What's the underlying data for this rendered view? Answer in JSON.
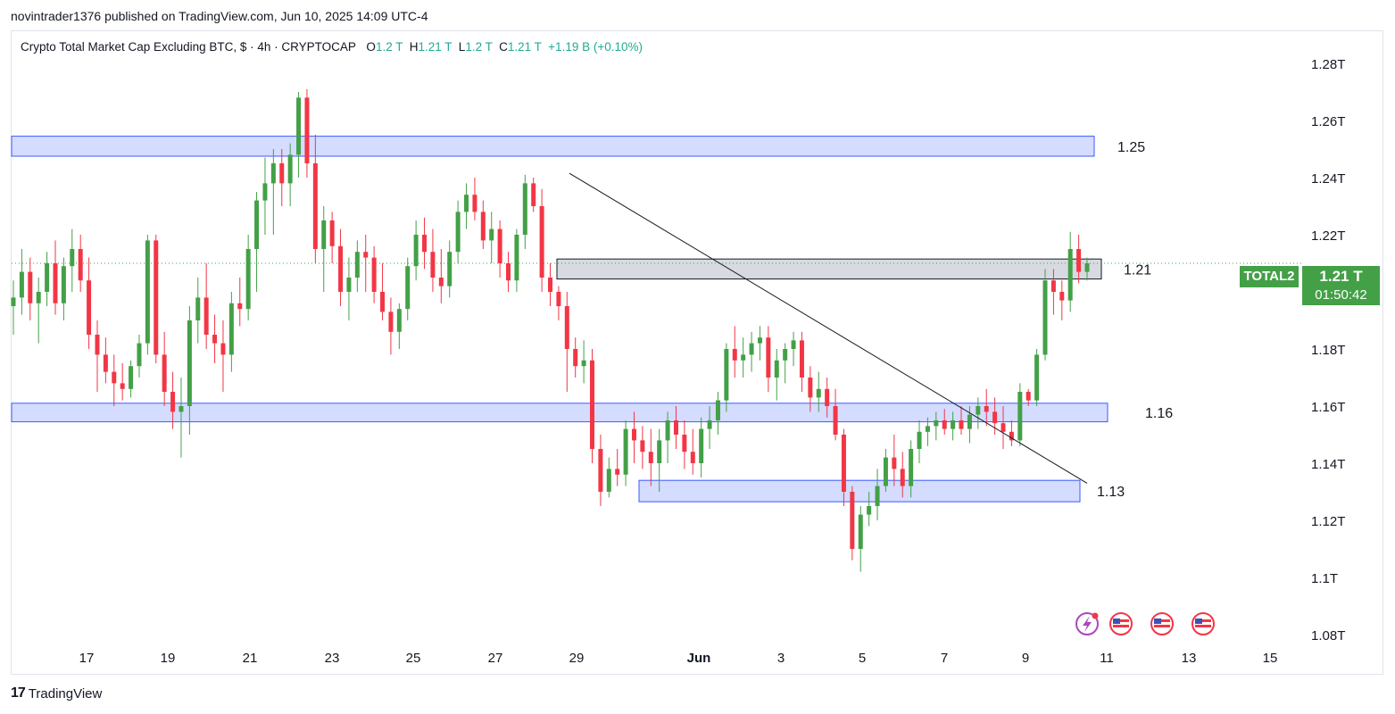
{
  "header": {
    "publish_line": "novintrader1376 published on TradingView.com, Jun 10, 2025 14:09 UTC-4"
  },
  "legend": {
    "symbol": "Crypto Total Market Cap Excluding BTC, $ · 4h · CRYPTOCAP",
    "o_label": "O",
    "o_value": "1.2 T",
    "h_label": "H",
    "h_value": "1.21 T",
    "l_label": "L",
    "l_value": "1.2 T",
    "c_label": "C",
    "c_value": "1.21 T",
    "change": "+1.19 B (+0.10%)"
  },
  "price_badge": {
    "ticker": "TOTAL2",
    "price": "1.21 T",
    "countdown": "01:50:42"
  },
  "footer": {
    "logo": "17",
    "brand": "TradingView"
  },
  "colors": {
    "up": "#22ab94",
    "up_body": "#43a047",
    "down": "#f23645",
    "zone_fill": "#d4dcff",
    "zone_border": "#3d5afe",
    "gray_zone": "#d1d4dc",
    "badge": "#43a047"
  },
  "chart_data": {
    "type": "candlestick",
    "x_ticks": [
      "17",
      "19",
      "21",
      "23",
      "25",
      "27",
      "29",
      "Jun",
      "3",
      "5",
      "7",
      "9",
      "11",
      "13",
      "15"
    ],
    "y_ticks": [
      "1.28T",
      "1.26T",
      "1.24T",
      "1.22T",
      "1.18T",
      "1.16T",
      "1.14T",
      "1.12T",
      "1.1T",
      "1.08T"
    ],
    "y_tick_values": [
      1.28,
      1.26,
      1.24,
      1.22,
      1.18,
      1.16,
      1.14,
      1.12,
      1.1,
      1.08
    ],
    "ylim": [
      1.08,
      1.28
    ],
    "zones": [
      {
        "label": "1.25",
        "low": 1.2475,
        "high": 1.2545,
        "style": "blue"
      },
      {
        "label": "1.21",
        "low": 1.2045,
        "high": 1.2115,
        "style": "gray"
      },
      {
        "label": "1.16",
        "low": 1.1545,
        "high": 1.161,
        "style": "blue"
      },
      {
        "label": "1.13",
        "low": 1.1265,
        "high": 1.134,
        "style": "blue"
      }
    ],
    "trendline": {
      "from": [
        "May 28",
        1.2415
      ],
      "to": [
        "Jun 10",
        1.133
      ]
    },
    "last_price": 1.21,
    "candles": [
      [
        1.195,
        1.204,
        1.185,
        1.198
      ],
      [
        1.198,
        1.215,
        1.192,
        1.207
      ],
      [
        1.207,
        1.212,
        1.19,
        1.196
      ],
      [
        1.196,
        1.205,
        1.182,
        1.2
      ],
      [
        1.2,
        1.214,
        1.195,
        1.21
      ],
      [
        1.21,
        1.218,
        1.192,
        1.196
      ],
      [
        1.196,
        1.212,
        1.19,
        1.209
      ],
      [
        1.209,
        1.222,
        1.2,
        1.215
      ],
      [
        1.215,
        1.22,
        1.2,
        1.204
      ],
      [
        1.204,
        1.212,
        1.18,
        1.185
      ],
      [
        1.185,
        1.19,
        1.165,
        1.178
      ],
      [
        1.178,
        1.184,
        1.168,
        1.172
      ],
      [
        1.172,
        1.178,
        1.16,
        1.168
      ],
      [
        1.168,
        1.175,
        1.162,
        1.166
      ],
      [
        1.166,
        1.176,
        1.163,
        1.174
      ],
      [
        1.174,
        1.185,
        1.17,
        1.182
      ],
      [
        1.182,
        1.22,
        1.178,
        1.218
      ],
      [
        1.218,
        1.22,
        1.175,
        1.178
      ],
      [
        1.178,
        1.186,
        1.16,
        1.165
      ],
      [
        1.165,
        1.172,
        1.152,
        1.158
      ],
      [
        1.158,
        1.17,
        1.142,
        1.16
      ],
      [
        1.16,
        1.195,
        1.15,
        1.19
      ],
      [
        1.19,
        1.205,
        1.182,
        1.198
      ],
      [
        1.198,
        1.21,
        1.18,
        1.185
      ],
      [
        1.185,
        1.192,
        1.175,
        1.182
      ],
      [
        1.182,
        1.19,
        1.165,
        1.178
      ],
      [
        1.178,
        1.2,
        1.172,
        1.196
      ],
      [
        1.196,
        1.205,
        1.188,
        1.194
      ],
      [
        1.194,
        1.22,
        1.19,
        1.215
      ],
      [
        1.215,
        1.235,
        1.2,
        1.232
      ],
      [
        1.232,
        1.247,
        1.22,
        1.238
      ],
      [
        1.238,
        1.25,
        1.22,
        1.245
      ],
      [
        1.245,
        1.25,
        1.23,
        1.238
      ],
      [
        1.238,
        1.252,
        1.23,
        1.248
      ],
      [
        1.248,
        1.27,
        1.24,
        1.268
      ],
      [
        1.268,
        1.271,
        1.24,
        1.245
      ],
      [
        1.245,
        1.255,
        1.21,
        1.215
      ],
      [
        1.215,
        1.23,
        1.2,
        1.225
      ],
      [
        1.225,
        1.228,
        1.21,
        1.216
      ],
      [
        1.216,
        1.222,
        1.195,
        1.2
      ],
      [
        1.2,
        1.212,
        1.19,
        1.205
      ],
      [
        1.205,
        1.218,
        1.2,
        1.214
      ],
      [
        1.214,
        1.22,
        1.2,
        1.212
      ],
      [
        1.212,
        1.216,
        1.196,
        1.2
      ],
      [
        1.2,
        1.21,
        1.19,
        1.193
      ],
      [
        1.193,
        1.198,
        1.178,
        1.186
      ],
      [
        1.186,
        1.196,
        1.18,
        1.194
      ],
      [
        1.194,
        1.212,
        1.19,
        1.209
      ],
      [
        1.209,
        1.225,
        1.204,
        1.22
      ],
      [
        1.22,
        1.226,
        1.208,
        1.214
      ],
      [
        1.214,
        1.222,
        1.2,
        1.205
      ],
      [
        1.205,
        1.215,
        1.196,
        1.202
      ],
      [
        1.202,
        1.218,
        1.198,
        1.214
      ],
      [
        1.214,
        1.232,
        1.21,
        1.228
      ],
      [
        1.228,
        1.238,
        1.222,
        1.234
      ],
      [
        1.234,
        1.24,
        1.225,
        1.228
      ],
      [
        1.228,
        1.232,
        1.215,
        1.218
      ],
      [
        1.218,
        1.228,
        1.21,
        1.222
      ],
      [
        1.222,
        1.225,
        1.205,
        1.21
      ],
      [
        1.21,
        1.214,
        1.2,
        1.204
      ],
      [
        1.204,
        1.222,
        1.2,
        1.22
      ],
      [
        1.22,
        1.241,
        1.215,
        1.238
      ],
      [
        1.238,
        1.24,
        1.228,
        1.23
      ],
      [
        1.23,
        1.236,
        1.2,
        1.205
      ],
      [
        1.205,
        1.21,
        1.195,
        1.2
      ],
      [
        1.2,
        1.202,
        1.19,
        1.195
      ],
      [
        1.195,
        1.2,
        1.165,
        1.18
      ],
      [
        1.18,
        1.184,
        1.17,
        1.174
      ],
      [
        1.174,
        1.183,
        1.168,
        1.176
      ],
      [
        1.176,
        1.18,
        1.14,
        1.145
      ],
      [
        1.145,
        1.15,
        1.125,
        1.13
      ],
      [
        1.13,
        1.142,
        1.128,
        1.138
      ],
      [
        1.138,
        1.145,
        1.132,
        1.136
      ],
      [
        1.136,
        1.155,
        1.132,
        1.152
      ],
      [
        1.152,
        1.158,
        1.14,
        1.148
      ],
      [
        1.148,
        1.153,
        1.138,
        1.144
      ],
      [
        1.144,
        1.152,
        1.132,
        1.14
      ],
      [
        1.14,
        1.152,
        1.13,
        1.148
      ],
      [
        1.148,
        1.158,
        1.14,
        1.155
      ],
      [
        1.155,
        1.16,
        1.145,
        1.15
      ],
      [
        1.15,
        1.155,
        1.138,
        1.144
      ],
      [
        1.144,
        1.152,
        1.136,
        1.14
      ],
      [
        1.14,
        1.156,
        1.135,
        1.152
      ],
      [
        1.152,
        1.16,
        1.145,
        1.155
      ],
      [
        1.155,
        1.165,
        1.15,
        1.162
      ],
      [
        1.162,
        1.182,
        1.158,
        1.18
      ],
      [
        1.18,
        1.188,
        1.17,
        1.176
      ],
      [
        1.176,
        1.184,
        1.17,
        1.178
      ],
      [
        1.178,
        1.186,
        1.172,
        1.182
      ],
      [
        1.182,
        1.188,
        1.176,
        1.184
      ],
      [
        1.184,
        1.188,
        1.165,
        1.17
      ],
      [
        1.17,
        1.18,
        1.162,
        1.176
      ],
      [
        1.176,
        1.182,
        1.168,
        1.18
      ],
      [
        1.18,
        1.186,
        1.174,
        1.183
      ],
      [
        1.183,
        1.186,
        1.165,
        1.17
      ],
      [
        1.17,
        1.174,
        1.158,
        1.163
      ],
      [
        1.163,
        1.172,
        1.158,
        1.166
      ],
      [
        1.166,
        1.17,
        1.156,
        1.16
      ],
      [
        1.16,
        1.166,
        1.148,
        1.15
      ],
      [
        1.15,
        1.152,
        1.125,
        1.13
      ],
      [
        1.13,
        1.132,
        1.106,
        1.11
      ],
      [
        1.11,
        1.125,
        1.102,
        1.122
      ],
      [
        1.122,
        1.13,
        1.118,
        1.125
      ],
      [
        1.125,
        1.138,
        1.12,
        1.132
      ],
      [
        1.132,
        1.145,
        1.13,
        1.142
      ],
      [
        1.142,
        1.15,
        1.132,
        1.138
      ],
      [
        1.138,
        1.144,
        1.128,
        1.132
      ],
      [
        1.132,
        1.148,
        1.128,
        1.145
      ],
      [
        1.145,
        1.155,
        1.14,
        1.151
      ],
      [
        1.151,
        1.156,
        1.146,
        1.153
      ],
      [
        1.153,
        1.158,
        1.148,
        1.155
      ],
      [
        1.155,
        1.159,
        1.15,
        1.152
      ],
      [
        1.152,
        1.158,
        1.148,
        1.155
      ],
      [
        1.155,
        1.16,
        1.15,
        1.152
      ],
      [
        1.152,
        1.16,
        1.147,
        1.157
      ],
      [
        1.157,
        1.163,
        1.152,
        1.16
      ],
      [
        1.16,
        1.166,
        1.153,
        1.158
      ],
      [
        1.158,
        1.163,
        1.15,
        1.154
      ],
      [
        1.154,
        1.16,
        1.145,
        1.151
      ],
      [
        1.151,
        1.155,
        1.146,
        1.148
      ],
      [
        1.148,
        1.168,
        1.146,
        1.165
      ],
      [
        1.165,
        1.166,
        1.16,
        1.162
      ],
      [
        1.162,
        1.18,
        1.16,
        1.178
      ],
      [
        1.178,
        1.208,
        1.176,
        1.204
      ],
      [
        1.204,
        1.208,
        1.192,
        1.2
      ],
      [
        1.2,
        1.204,
        1.19,
        1.197
      ],
      [
        1.197,
        1.221,
        1.193,
        1.215
      ],
      [
        1.215,
        1.22,
        1.203,
        1.207
      ],
      [
        1.207,
        1.212,
        1.204,
        1.21
      ]
    ]
  }
}
